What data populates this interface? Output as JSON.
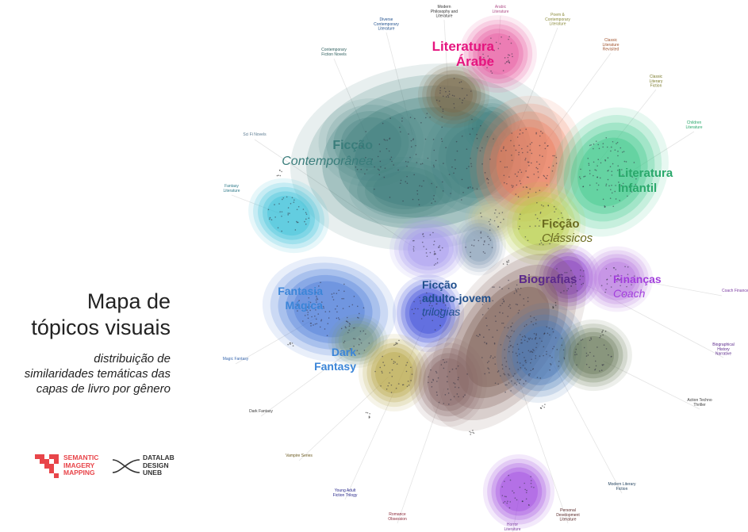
{
  "title_lines": [
    "Mapa de",
    "tópicos visuais"
  ],
  "subtitle_lines": [
    "distribuição de",
    "similaridades temáticas das",
    "capas de livro por gênero"
  ],
  "logo_1_lines": [
    "SEMANTIC",
    "IMAGERY",
    "MAPPING"
  ],
  "logo_2_lines": [
    "DATALAB",
    "DESIGN",
    "UNEB"
  ],
  "colors": {
    "arabe": "#e5157f",
    "contemporanea": "#3a7d7b",
    "infantil": "#2aa86b",
    "classicos": "#6b6b1f",
    "biografias": "#5c2a8c",
    "financas": "#a23fdc",
    "fantasia": "#3b85d8",
    "dark": "#3b85d8",
    "adulto": "#1f4f8c"
  },
  "main_labels": [
    {
      "id": "arabe",
      "lines": [
        "Literatura",
        "Árabe"
      ],
      "italic": [
        false,
        false
      ]
    },
    {
      "id": "contemporanea",
      "lines": [
        "Ficção",
        "Contemporânea"
      ],
      "italic": [
        false,
        true
      ]
    },
    {
      "id": "infantil",
      "lines": [
        "Literatura",
        "Infantil"
      ],
      "italic": [
        false,
        false
      ]
    },
    {
      "id": "classicos",
      "lines": [
        "Ficção",
        "Clássicos"
      ],
      "italic": [
        false,
        true
      ]
    },
    {
      "id": "biografias",
      "lines": [
        "Biografias"
      ],
      "italic": [
        false
      ]
    },
    {
      "id": "financas",
      "lines": [
        "Finanças",
        "Coach"
      ],
      "italic": [
        false,
        true
      ]
    },
    {
      "id": "fantasia",
      "lines": [
        "Fantasia",
        "Mágica"
      ],
      "italic": [
        false,
        false
      ]
    },
    {
      "id": "dark",
      "lines": [
        "Dark",
        "Fantasy"
      ],
      "italic": [
        false,
        false
      ]
    },
    {
      "id": "adulto",
      "lines": [
        "Ficção",
        "adulto-jovem",
        "trilogias"
      ],
      "italic": [
        false,
        false,
        true
      ]
    }
  ],
  "small_labels": [
    {
      "lines": [
        "Modern",
        "Philosophy and",
        "Literature"
      ],
      "color": "#333333"
    },
    {
      "lines": [
        "Arabic",
        "Literature"
      ],
      "color": "#b0508a"
    },
    {
      "lines": [
        "Poem &",
        "Contemporary",
        "Literature"
      ],
      "color": "#8a8a3a"
    },
    {
      "lines": [
        "Diverse",
        "Contemporary",
        "Literature"
      ],
      "color": "#1f4f8c"
    },
    {
      "lines": [
        "Contemporary",
        "Fiction Novels"
      ],
      "color": "#2e5f5e"
    },
    {
      "lines": [
        "Classic",
        "Literature",
        "Revisited"
      ],
      "color": "#a0522d"
    },
    {
      "lines": [
        "Classic",
        "Literary",
        "Fiction"
      ],
      "color": "#7a7a2a"
    },
    {
      "lines": [
        "Children",
        "Literature"
      ],
      "color": "#2aa86b"
    },
    {
      "lines": [
        "Sci Fi Novels"
      ],
      "color": "#5a7a90"
    },
    {
      "lines": [
        "Fantasy",
        "Literature"
      ],
      "color": "#2e7a8a"
    },
    {
      "lines": [
        "Coach Finance"
      ],
      "color": "#7a3aa0"
    },
    {
      "lines": [
        "Biographical",
        "History",
        "Narrative"
      ],
      "color": "#5c2a8c"
    },
    {
      "lines": [
        "Magic Fantasy"
      ],
      "color": "#3b6ab0"
    },
    {
      "lines": [
        "Dark Fantasy"
      ],
      "color": "#3a3a3a"
    },
    {
      "lines": [
        "Action Techno",
        "Thriller"
      ],
      "color": "#3a3a3a"
    },
    {
      "lines": [
        "Vampire Series"
      ],
      "color": "#6b5a1f"
    },
    {
      "lines": [
        "Young Adult",
        "Fiction Trilogy"
      ],
      "color": "#2a2a8c"
    },
    {
      "lines": [
        "Modern Literary",
        "Fiction"
      ],
      "color": "#1f3f5c"
    },
    {
      "lines": [
        "Personal",
        "Development",
        "Literature"
      ],
      "color": "#5a2a2a"
    },
    {
      "lines": [
        "Romance",
        "Obsession"
      ],
      "color": "#8c2a3a"
    },
    {
      "lines": [
        "Horror",
        "Literature"
      ],
      "color": "#7a3aa0"
    }
  ],
  "clusters": [
    {
      "color": "#3f7f7c"
    },
    {
      "color": "#7d6a4a"
    },
    {
      "color": "#e85aa0"
    },
    {
      "color": "#f07a5a"
    },
    {
      "color": "#3cc88a"
    },
    {
      "color": "#b8cf4a"
    },
    {
      "color": "#c8c89a"
    },
    {
      "color": "#8aa0b8"
    },
    {
      "color": "#a89af0"
    },
    {
      "color": "#3ac0d8"
    },
    {
      "color": "#8a3ad0"
    },
    {
      "color": "#b87ae0"
    },
    {
      "color": "#4a7ad8"
    },
    {
      "color": "#3a4ad8"
    },
    {
      "color": "#7a9a8a"
    },
    {
      "color": "#7a5a50"
    },
    {
      "color": "#4a7ab8"
    },
    {
      "color": "#6a7a5a"
    },
    {
      "color": "#b8a84a"
    },
    {
      "color": "#8a6a6a"
    },
    {
      "color": "#a04ae0"
    }
  ]
}
